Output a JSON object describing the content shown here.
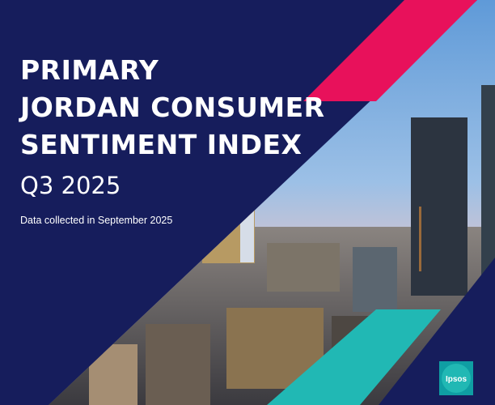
{
  "header": {
    "title_lines": [
      "PRIMARY",
      "JORDAN CONSUMER",
      "SENTIMENT INDEX"
    ],
    "subtitle": "Q3 2025",
    "note": "Data collected in September 2025"
  },
  "logo": {
    "text": "Ipsos"
  }
}
